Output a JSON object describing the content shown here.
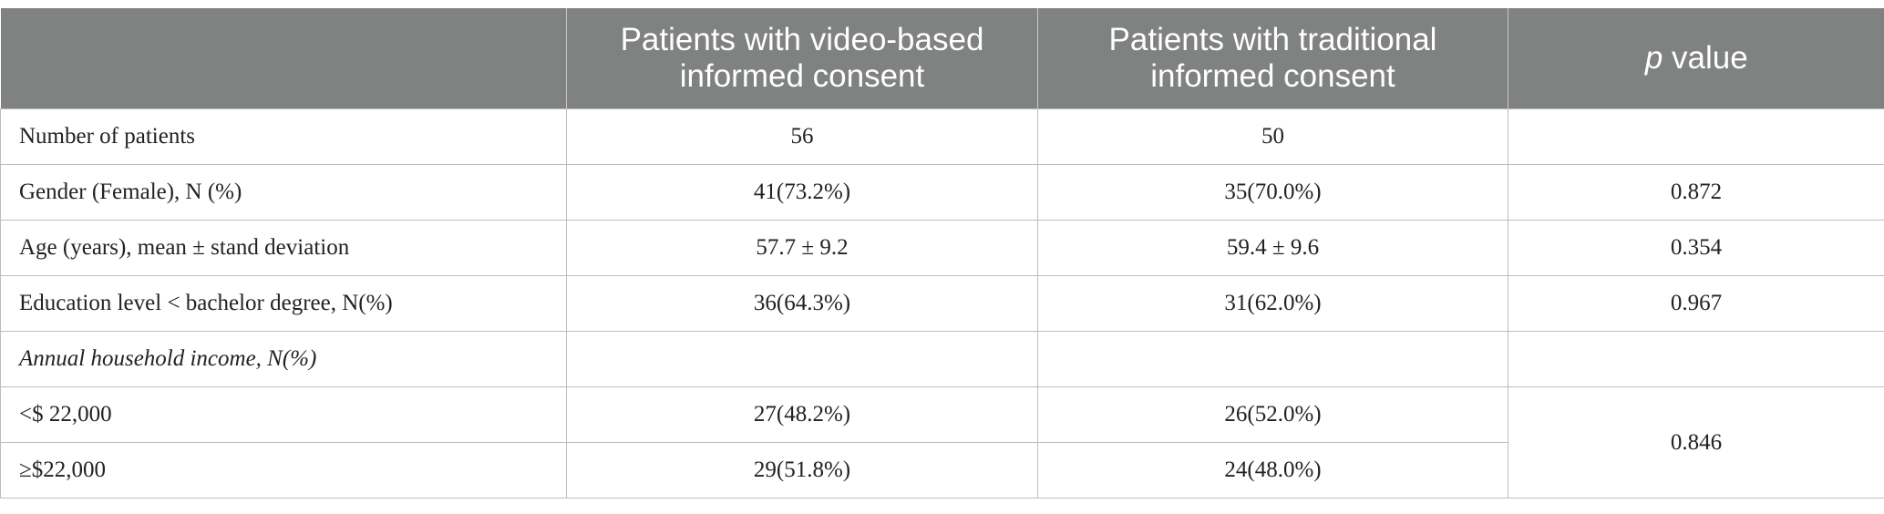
{
  "table": {
    "header": [
      "Patients with video-based informed consent",
      "Patients with traditional informed consent",
      {
        "italic": "p",
        "text": "value"
      }
    ],
    "rows": [
      {
        "label": "Number of patients",
        "video": "56",
        "traditional": "50"
      },
      {
        "label": "Gender (Female), N (%)",
        "video": "41(73.2%)",
        "traditional": "35(70.0%)",
        "p": "0.872"
      },
      {
        "label": "Age (years), mean ± stand deviation",
        "video": "57.7 ± 9.2",
        "traditional": "59.4 ± 9.6",
        "p": "0.354"
      },
      {
        "label": "Education level < bachelor degree, N(%)",
        "video": "36(64.3%)",
        "traditional": "31(62.0%)",
        "p": "0.967"
      },
      {
        "label": "Annual household income, N(%)"
      },
      {
        "label": "<$ 22,000",
        "video": "27(48.2%)",
        "traditional": "26(52.0%)",
        "p": "0.846"
      },
      {
        "label": "≥$22,000",
        "video": "29(51.8%)",
        "traditional": "24(48.0%)"
      }
    ]
  }
}
